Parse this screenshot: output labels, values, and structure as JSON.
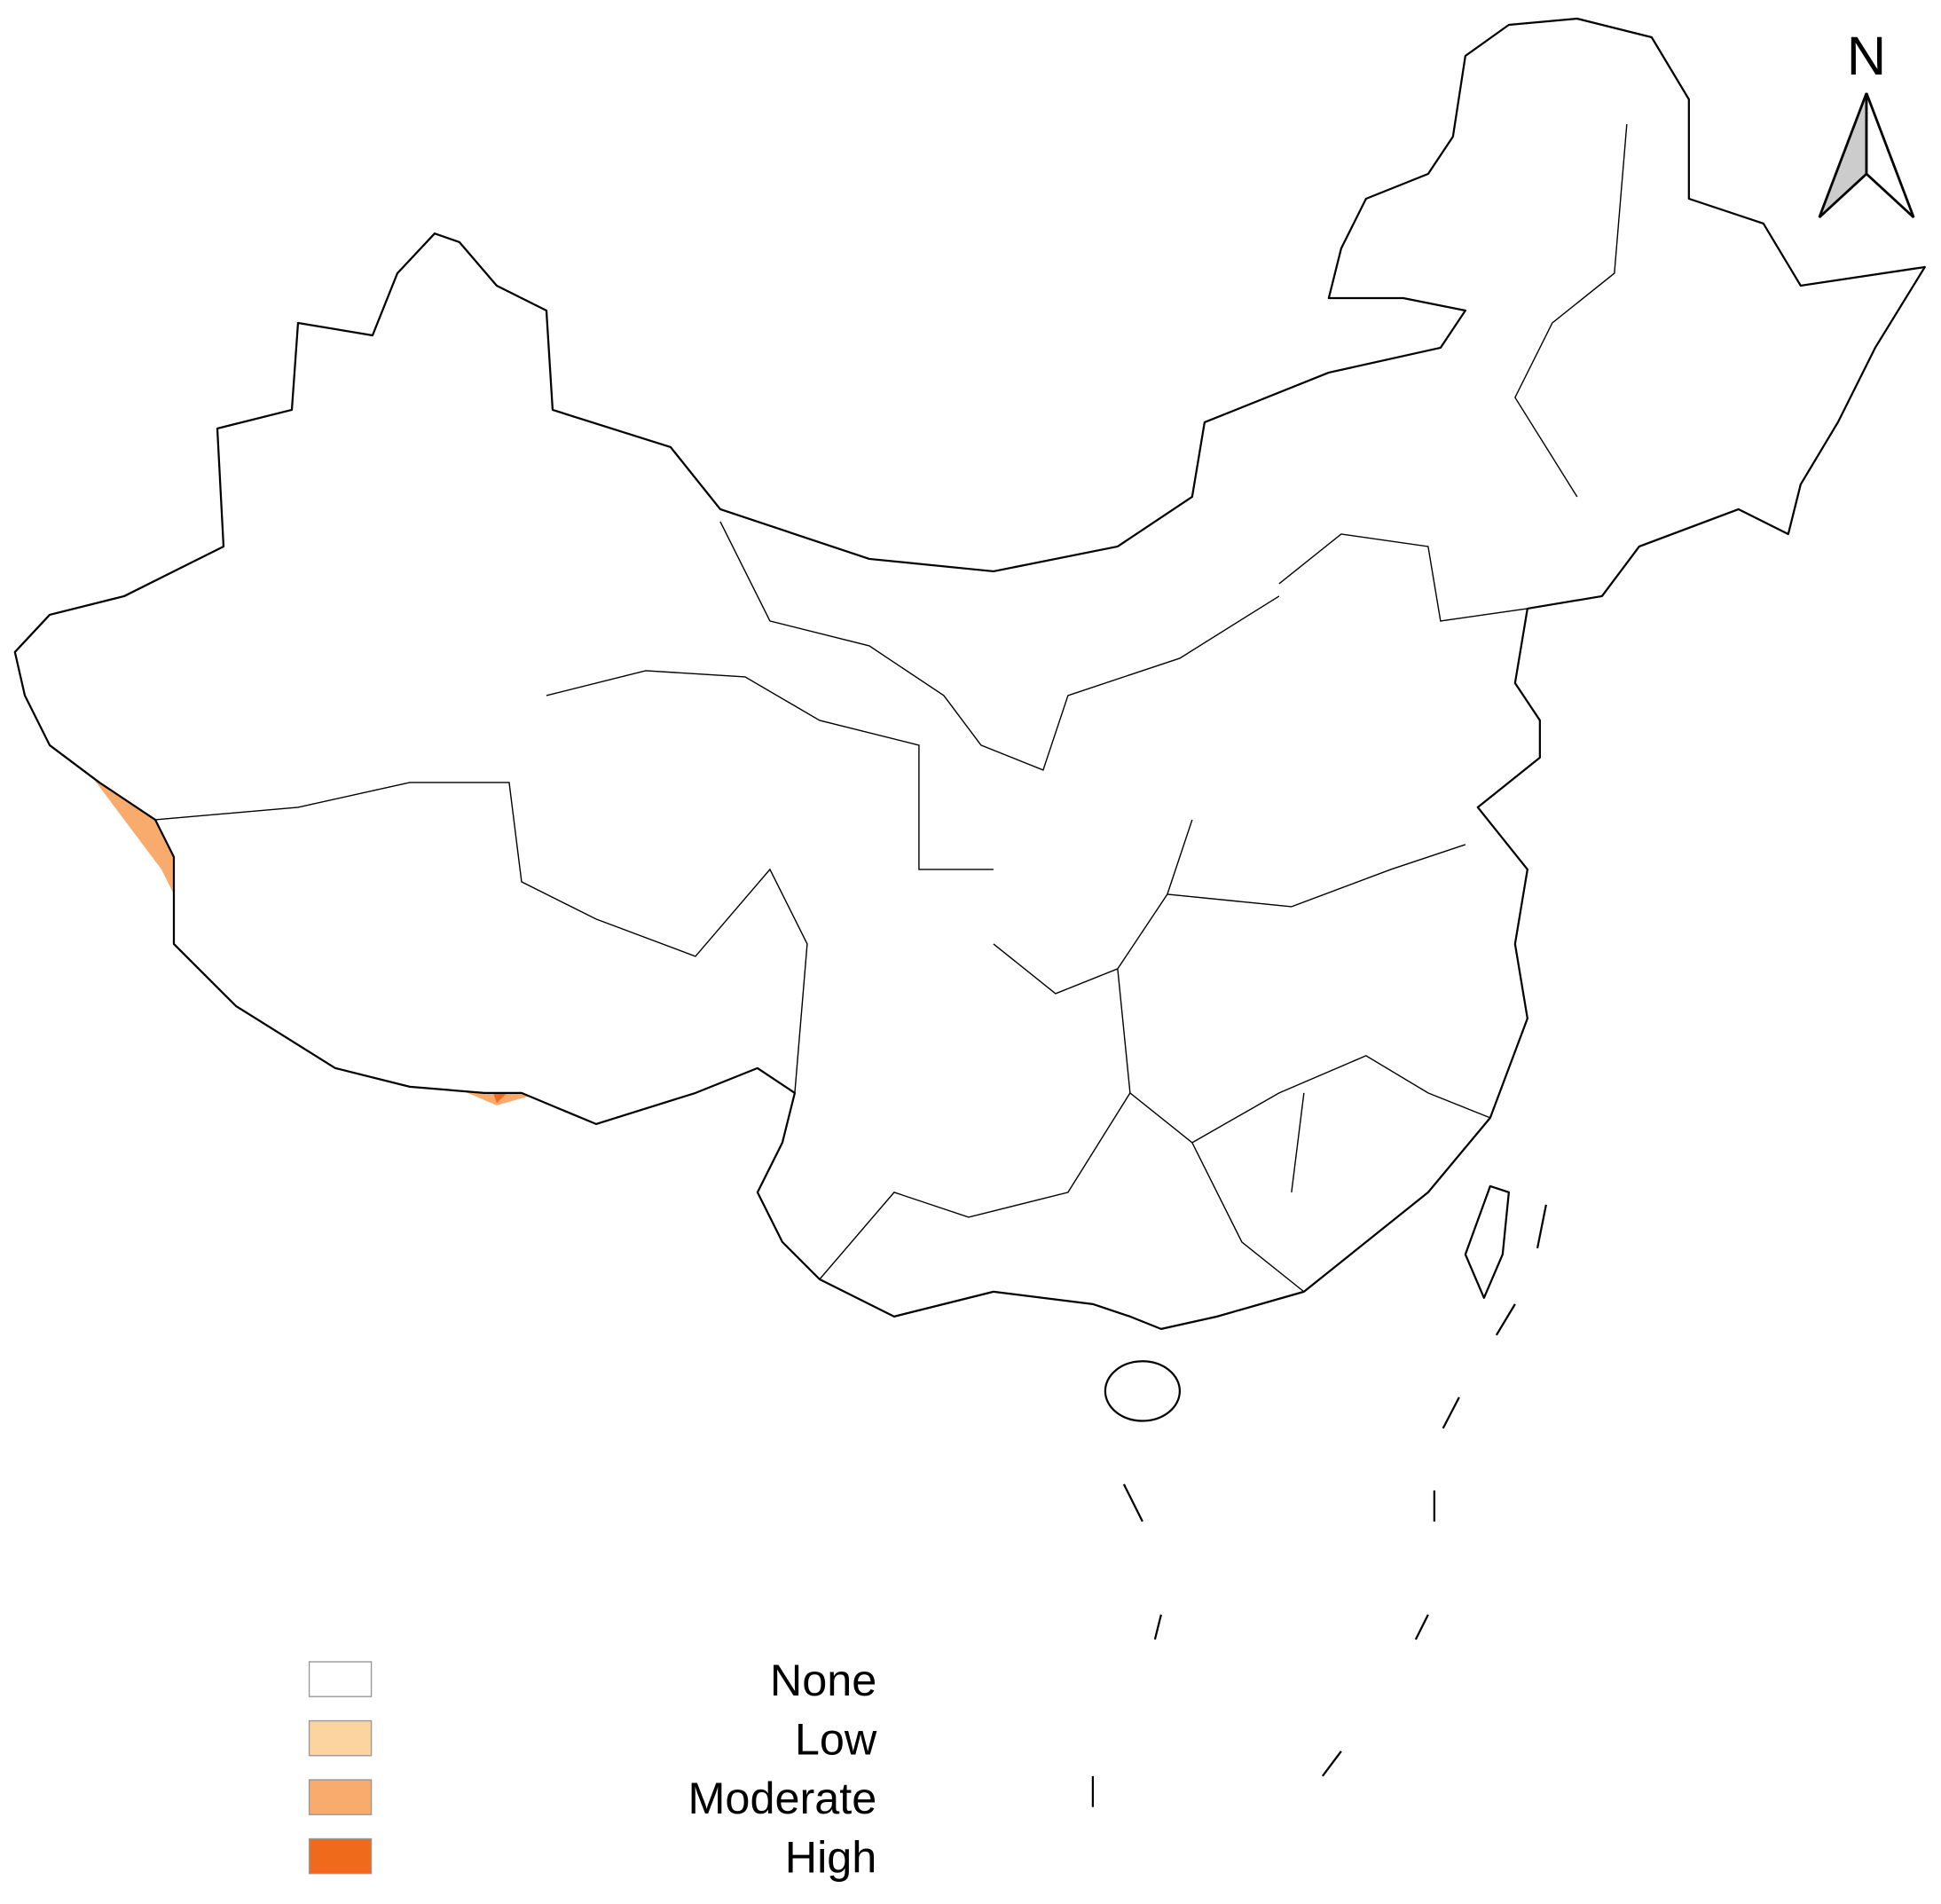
{
  "north_label": "N",
  "legend": {
    "items": [
      {
        "label": "None",
        "color": "#ffffff"
      },
      {
        "label": "Low",
        "color": "#fcd4a0"
      },
      {
        "label": "Moderate",
        "color": "#f9ab6e"
      },
      {
        "label": "High",
        "color": "#ef6a1a"
      }
    ]
  }
}
